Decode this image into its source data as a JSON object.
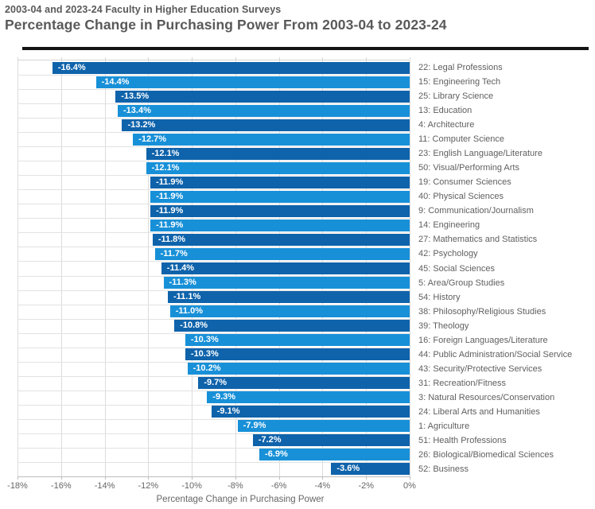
{
  "header": {
    "subtitle": "2003-04 and 2023-24 Faculty in Higher Education Surveys",
    "title": "Percentage Change in Purchasing Power From 2003-04 to 2023-24"
  },
  "colors": {
    "bar_dark": "#0f63ab",
    "bar_light": "#1890d8",
    "title_text": "#595959",
    "axis_text": "#666666",
    "gridline": "#dcdcdc",
    "divider": "#141414"
  },
  "chart_data": {
    "type": "bar",
    "orientation": "horizontal",
    "title": "Percentage Change in Purchasing Power From 2003-04 to 2023-24",
    "subtitle": "2003-04 and 2023-24 Faculty in Higher Education Surveys",
    "xlabel": "Percentage Change in Purchasing Power",
    "ylabel": "",
    "xlim": [
      -18,
      0
    ],
    "x_ticks": [
      "-18%",
      "-16%",
      "-14%",
      "-12%",
      "-10%",
      "-8%",
      "-6%",
      "-4%",
      "-2%",
      "0%"
    ],
    "grid": true,
    "legend": false,
    "bar_colors_alternate": true,
    "categories": [
      "22: Legal Professions",
      "15: Engineering Tech",
      "25: Library Science",
      "13: Education",
      "4: Architecture",
      "11: Computer Science",
      "23: English Language/Literature",
      "50: Visual/Performing Arts",
      "19: Consumer Sciences",
      "40: Physical Sciences",
      "9: Communication/Journalism",
      "14: Engineering",
      "27: Mathematics and Statistics",
      "42: Psychology",
      "45: Social Sciences",
      "5: Area/Group Studies",
      "54: History",
      "38: Philosophy/Religious Studies",
      "39: Theology",
      "16: Foreign Languages/Literature",
      "44: Public Administration/Social Service",
      "43: Security/Protective Services",
      "31: Recreation/Fitness",
      "3: Natural Resources/Conservation",
      "24: Liberal Arts and Humanities",
      "1: Agriculture",
      "51: Health Professions",
      "26: Biological/Biomedical Sciences",
      "52: Business"
    ],
    "values": [
      -16.4,
      -14.4,
      -13.5,
      -13.4,
      -13.2,
      -12.7,
      -12.1,
      -12.1,
      -11.9,
      -11.9,
      -11.9,
      -11.9,
      -11.8,
      -11.7,
      -11.4,
      -11.3,
      -11.1,
      -11.0,
      -10.8,
      -10.3,
      -10.3,
      -10.2,
      -9.7,
      -9.3,
      -9.1,
      -7.9,
      -7.2,
      -6.9,
      -3.6
    ],
    "value_labels": [
      "-16.4%",
      "-14.4%",
      "-13.5%",
      "-13.4%",
      "-13.2%",
      "-12.7%",
      "-12.1%",
      "-12.1%",
      "-11.9%",
      "-11.9%",
      "-11.9%",
      "-11.9%",
      "-11.8%",
      "-11.7%",
      "-11.4%",
      "-11.3%",
      "-11.1%",
      "-11.0%",
      "-10.8%",
      "-10.3%",
      "-10.3%",
      "-10.2%",
      "-9.7%",
      "-9.3%",
      "-9.1%",
      "-7.9%",
      "-7.2%",
      "-6.9%",
      "-3.6%"
    ]
  }
}
